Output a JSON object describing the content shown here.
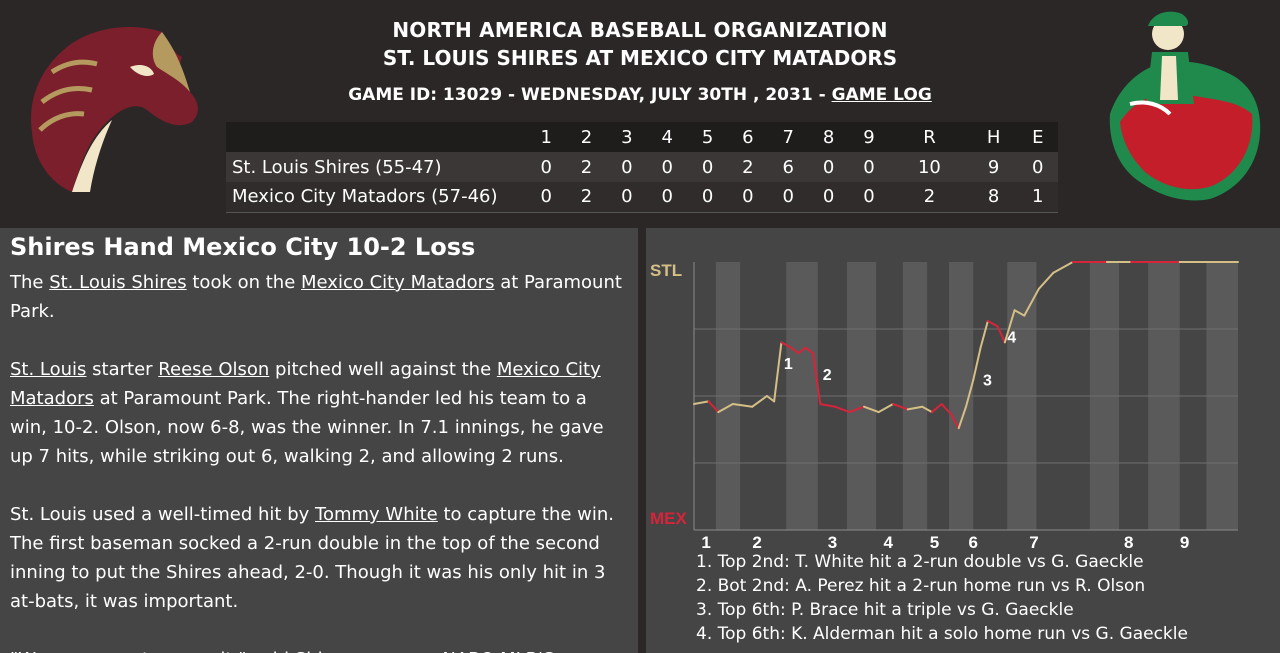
{
  "header": {
    "org_title": "NORTH AMERICA BASEBALL ORGANIZATION",
    "matchup": "ST. LOUIS SHIRES AT MEXICO CITY MATADORS",
    "game_id_prefix": "GAME ID: 13029 - WEDNESDAY, JULY 30TH , 2031 -",
    "game_log_link": "GAME LOG"
  },
  "logos": {
    "away": "horse-head-logo",
    "home": "matador-logo",
    "away_color": "#7a1f2b",
    "home_colors": [
      "#1f8a4c",
      "#c41e2a"
    ]
  },
  "linescore": {
    "columns": [
      "1",
      "2",
      "3",
      "4",
      "5",
      "6",
      "7",
      "8",
      "9",
      "R",
      "H",
      "E"
    ],
    "rows": [
      {
        "team": "St. Louis Shires (55-47)",
        "values": [
          "0",
          "2",
          "0",
          "0",
          "0",
          "2",
          "6",
          "0",
          "0",
          "10",
          "9",
          "0"
        ]
      },
      {
        "team": "Mexico City Matadors (57-46)",
        "values": [
          "0",
          "2",
          "0",
          "0",
          "0",
          "0",
          "0",
          "0",
          "0",
          "2",
          "8",
          "1"
        ]
      }
    ]
  },
  "article": {
    "headline": "Shires Hand Mexico City 10-2 Loss",
    "p1": {
      "a": "The ",
      "link1": "St. Louis Shires",
      "b": " took on the ",
      "link2": "Mexico City Matadors",
      "c": " at Paramount Park."
    },
    "p2": {
      "link1": "St. Louis",
      "a": " starter ",
      "link2": "Reese Olson",
      "b": " pitched well against the ",
      "link3": "Mexico City Matadors",
      "c": " at Paramount Park. The right-hander led his team to a win, 10-2. Olson, now 6-8, was the winner. In 7.1 innings, he gave up 7 hits, while striking out 6, walking 2, and allowing 2 runs."
    },
    "p3": {
      "a": "St. Louis used a well-timed hit by ",
      "link1": "Tommy White",
      "b": " to capture the win. The first baseman socked a 2-run double in the top of the second inning to put the Shires ahead, 2-0. Though it was his only hit in 3 at-bats, it was important."
    },
    "p4": "\"We were great as a unit,\" said Shires manager NABO MLB'S"
  },
  "chart_data": {
    "type": "line",
    "y_top_label": "STL",
    "y_bottom_label": "MEX",
    "ylim": [
      0,
      100
    ],
    "x_tick_labels": [
      "1",
      "2",
      "3",
      "4",
      "5",
      "6",
      "7",
      "8",
      "9"
    ],
    "colors": {
      "stl": "#d4bf86",
      "mex": "#d6243a",
      "stl_label": "#d4bf86",
      "mex_label": "#d6243a"
    },
    "series_points": [
      [
        0.0,
        47
      ],
      [
        0.3,
        48
      ],
      [
        0.5,
        44
      ],
      [
        0.8,
        47
      ],
      [
        1.2,
        46
      ],
      [
        1.5,
        50
      ],
      [
        1.65,
        48
      ],
      [
        1.8,
        70
      ],
      [
        2.0,
        68
      ],
      [
        2.15,
        66
      ],
      [
        2.3,
        68
      ],
      [
        2.45,
        66
      ],
      [
        2.6,
        47
      ],
      [
        2.9,
        46
      ],
      [
        3.2,
        44
      ],
      [
        3.5,
        46
      ],
      [
        3.8,
        44
      ],
      [
        4.1,
        47
      ],
      [
        4.4,
        45
      ],
      [
        4.7,
        46
      ],
      [
        4.9,
        44
      ],
      [
        5.1,
        47
      ],
      [
        5.3,
        43
      ],
      [
        5.45,
        38
      ],
      [
        5.6,
        46
      ],
      [
        5.75,
        56
      ],
      [
        5.9,
        68
      ],
      [
        6.05,
        78
      ],
      [
        6.25,
        76
      ],
      [
        6.4,
        70
      ],
      [
        6.6,
        82
      ],
      [
        6.8,
        80
      ],
      [
        7.1,
        90
      ],
      [
        7.4,
        96
      ],
      [
        7.8,
        100
      ],
      [
        8.5,
        100
      ],
      [
        9.0,
        100
      ],
      [
        10.0,
        100
      ],
      [
        11.2,
        100
      ]
    ],
    "segment_winner": [
      "stl",
      "mex",
      "stl",
      "stl",
      "stl",
      "stl",
      "stl",
      "mex",
      "mex",
      "mex",
      "mex",
      "mex",
      "mex",
      "mex",
      "mex",
      "stl",
      "stl",
      "mex",
      "stl",
      "stl",
      "mex",
      "mex",
      "mex",
      "stl",
      "stl",
      "stl",
      "stl",
      "mex",
      "mex",
      "stl",
      "stl",
      "stl",
      "stl",
      "stl",
      "mex",
      "stl",
      "mex",
      "stl"
    ],
    "markers": [
      {
        "label": "1",
        "x": 1.85,
        "y": 60
      },
      {
        "label": "2",
        "x": 2.65,
        "y": 56
      },
      {
        "label": "3",
        "x": 5.95,
        "y": 54
      },
      {
        "label": "4",
        "x": 6.45,
        "y": 70
      }
    ],
    "x_max": 11.2,
    "events": [
      "1. Top 2nd: T. White hit a 2-run double vs G. Gaeckle",
      "2. Bot 2nd: A. Perez hit a 2-run home run vs R. Olson",
      "3. Top 6th: P. Brace hit a triple vs G. Gaeckle",
      "4. Top 6th: K. Alderman hit a solo home run vs G. Gaeckle"
    ]
  }
}
